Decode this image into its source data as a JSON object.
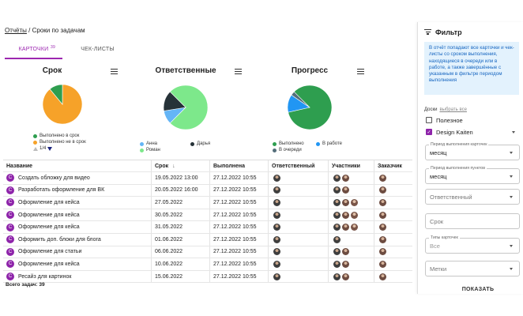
{
  "breadcrumb": {
    "parent": "Отчёты",
    "separator": " / ",
    "current": "Сроки по задачам"
  },
  "tabs": [
    {
      "label": "КАРТОЧКИ",
      "count": "39",
      "active": true
    },
    {
      "label": "ЧЕК-ЛИСТЫ",
      "active": false
    }
  ],
  "colors": {
    "accent": "#9c27b0",
    "card_badge": "#8e24aa",
    "info_bg": "#e3f2fd",
    "info_text": "#1565c0"
  },
  "charts": {
    "due": {
      "title": "Срок",
      "legend": [
        {
          "label": "Выполнено в срок",
          "color": "#2e9e4f"
        },
        {
          "label": "Выполнено не в срок",
          "color": "#f6a229"
        }
      ],
      "pager": "1/4"
    },
    "responsible": {
      "title": "Ответственные",
      "legend": [
        {
          "label": "Анна",
          "color": "#64b5f6"
        },
        {
          "label": "Дарья",
          "color": "#263238"
        },
        {
          "label": "Роман",
          "color": "#7de88b"
        }
      ]
    },
    "progress": {
      "title": "Прогресс",
      "legend": [
        {
          "label": "Выполнено",
          "color": "#2e9e4f"
        },
        {
          "label": "В работе",
          "color": "#2196f3"
        },
        {
          "label": "В очереди",
          "color": "#546e7a"
        }
      ]
    }
  },
  "chart_data": [
    {
      "type": "pie",
      "title": "Срок",
      "labels": [
        "Выполнено не в срок",
        "Выполнено в срок"
      ],
      "values": [
        89,
        11
      ]
    },
    {
      "type": "pie",
      "title": "Ответственные",
      "labels": [
        "Роман",
        "Анна",
        "Дарья"
      ],
      "values": [
        75,
        10,
        15
      ]
    },
    {
      "type": "pie",
      "title": "Прогресс",
      "labels": [
        "Выполнено",
        "В работе",
        "В очереди"
      ],
      "values": [
        84,
        13,
        3
      ]
    }
  ],
  "table": {
    "columns": [
      "Название",
      "Срок",
      "Выполнена",
      "Ответственный",
      "Участники",
      "Заказчик"
    ],
    "sort_indicator": "↓",
    "rows": [
      {
        "type": "C",
        "name": "Создать обложку для видео",
        "due": "19.05.2022 13:00",
        "done": "27.12.2022 10:55",
        "participants": 2
      },
      {
        "type": "C",
        "name": "Разработать оформление для ВК",
        "due": "20.05.2022 16:00",
        "done": "27.12.2022 10:55",
        "participants": 2
      },
      {
        "type": "C",
        "name": "Оформление для кейса",
        "due": "27.05.2022",
        "done": "27.12.2022 10:55",
        "participants": 3
      },
      {
        "type": "C",
        "name": "Оформление для кейса",
        "due": "30.05.2022",
        "done": "27.12.2022 10:55",
        "participants": 3
      },
      {
        "type": "C",
        "name": "Оформление для кейса",
        "due": "31.05.2022",
        "done": "27.12.2022 10:55",
        "participants": 3
      },
      {
        "type": "C",
        "name": "Оформить доп. блоки для блога",
        "due": "01.06.2022",
        "done": "27.12.2022 10:55",
        "participants": 1
      },
      {
        "type": "C",
        "name": "Оформление для статьи",
        "due": "06.06.2022",
        "done": "27.12.2022 10:55",
        "participants": 2
      },
      {
        "type": "C",
        "name": "Оформление для кейса",
        "due": "10.06.2022",
        "done": "27.12.2022 10:55",
        "participants": 2
      },
      {
        "type": "C",
        "name": "Ресайз для картинок",
        "due": "15.06.2022",
        "done": "27.12.2022 10:55",
        "participants": 2
      }
    ],
    "total": "Всего задач: 39"
  },
  "filter": {
    "title": "Фильтр",
    "info": "В отчёт попадают все карточки и чек-листы со сроком выполнения, находящиеся в очереди или в работе, а также завершённые с указанным в фильтре периодом выполнения",
    "boards_label": "Доски",
    "select_all": "выбрать все",
    "boards": [
      {
        "label": "Полезное",
        "checked": false
      },
      {
        "label": "Design Kaiten",
        "checked": true
      }
    ],
    "card_period": {
      "label": "Период выполнения карточек",
      "value": "месяц"
    },
    "item_period": {
      "label": "Период выполнения пунктов",
      "value": "месяц"
    },
    "responsible_placeholder": "Ответственный",
    "due_placeholder": "Срок",
    "card_types": {
      "label": "Типы карточек",
      "value": "Все"
    },
    "tags_placeholder": "Метки",
    "show_button": "ПОКАЗАТЬ"
  }
}
